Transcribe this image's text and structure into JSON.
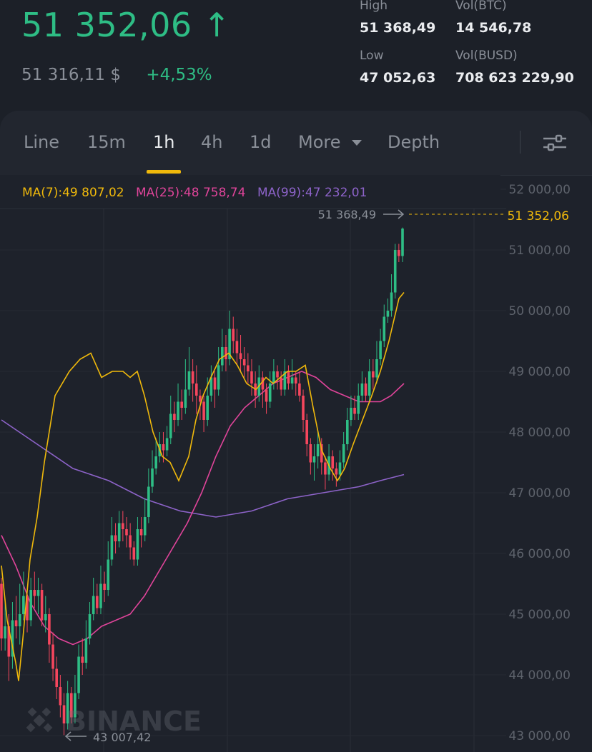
{
  "header": {
    "last_price": "51 352,06",
    "price_arrow": "↑",
    "usd_price": "51 316,11 $",
    "change": "+4,53%",
    "high_label": "High",
    "high_value": "51 368,49",
    "low_label": "Low",
    "low_value": "47 052,63",
    "vol_base_label": "Vol(BTC)",
    "vol_base_value": "14 546,78",
    "vol_quote_label": "Vol(BUSD)",
    "vol_quote_value": "708 623 229,90"
  },
  "tabs": {
    "line": "Line",
    "m15": "15m",
    "h1": "1h",
    "h4": "4h",
    "d1": "1d",
    "more": "More",
    "depth": "Depth",
    "active": "1h",
    "settings_icon": "sliders-icon"
  },
  "legend": {
    "ma7": "MA(7):49 807,02",
    "ma25": "MA(25):48 758,74",
    "ma99": "MA(99):47 232,01"
  },
  "colors": {
    "up": "#2ebd85",
    "down": "#f6465d",
    "ma7": "#f0b90b",
    "ma25": "#e0449a",
    "ma99": "#8d63c9",
    "accent": "#f0b90b"
  },
  "chart": {
    "y_ticks": [
      "52 000,00",
      "51 000,00",
      "50 000,00",
      "49 000,00",
      "48 000,00",
      "47 000,00",
      "46 000,00",
      "45 000,00",
      "44 000,00",
      "43 000,00"
    ],
    "y_tick_values": [
      52000,
      51000,
      50000,
      49000,
      48000,
      47000,
      46000,
      45000,
      44000,
      43000
    ],
    "high_marker": "51 368,49",
    "low_marker": "43 007,42",
    "current_price_label": "51 352,06",
    "watermark": "BINANCE"
  },
  "chart_data": {
    "type": "candlestick",
    "ylim": [
      43000,
      52000
    ],
    "high": 51368.49,
    "low": 43007.42,
    "last": 51352.06,
    "candles": [
      [
        45500,
        44600,
        45600,
        44400
      ],
      [
        44600,
        44800,
        45200,
        44400
      ],
      [
        44800,
        44300,
        45000,
        43900
      ],
      [
        44300,
        44900,
        45200,
        44100
      ],
      [
        44900,
        44800,
        45300,
        44600
      ],
      [
        44800,
        45000,
        45500,
        44500
      ],
      [
        45000,
        45300,
        45700,
        44900
      ],
      [
        45300,
        44900,
        45400,
        44700
      ],
      [
        44900,
        45400,
        45600,
        44800
      ],
      [
        45400,
        45300,
        45700,
        45100
      ],
      [
        45300,
        45400,
        45600,
        45000
      ],
      [
        45400,
        44900,
        45500,
        44800
      ],
      [
        44900,
        45000,
        45300,
        44700
      ],
      [
        45000,
        44500,
        45100,
        44200
      ],
      [
        44500,
        44100,
        44700,
        43900
      ],
      [
        44100,
        43800,
        44300,
        43600
      ],
      [
        43800,
        43500,
        44000,
        43300
      ],
      [
        43500,
        43200,
        43700,
        43007.42
      ],
      [
        43200,
        43700,
        43900,
        43100
      ],
      [
        43700,
        43300,
        43800,
        43200
      ],
      [
        43300,
        43700,
        44000,
        43200
      ],
      [
        43700,
        44300,
        44500,
        43600
      ],
      [
        44300,
        44200,
        44600,
        44000
      ],
      [
        44200,
        44600,
        44900,
        44100
      ],
      [
        44600,
        45000,
        45200,
        44500
      ],
      [
        45000,
        45300,
        45600,
        44900
      ],
      [
        45300,
        45100,
        45500,
        45000
      ],
      [
        45100,
        45500,
        45800,
        45000
      ],
      [
        45500,
        45400,
        45700,
        45200
      ],
      [
        45400,
        45900,
        46200,
        45300
      ],
      [
        45900,
        46300,
        46600,
        45800
      ],
      [
        46300,
        46200,
        46500,
        46000
      ],
      [
        46200,
        46500,
        46700,
        46100
      ],
      [
        46500,
        46400,
        46700,
        46200
      ],
      [
        46400,
        46300,
        46600,
        46100
      ],
      [
        46300,
        46100,
        46500,
        45900
      ],
      [
        46100,
        45900,
        46200,
        45800
      ],
      [
        45900,
        46400,
        46600,
        45800
      ],
      [
        46400,
        46300,
        46600,
        46100
      ],
      [
        46300,
        46600,
        46900,
        46200
      ],
      [
        46600,
        47100,
        47400,
        46500
      ],
      [
        47100,
        47400,
        47700,
        47000
      ],
      [
        47400,
        47600,
        47900,
        47300
      ],
      [
        47600,
        47800,
        48000,
        47500
      ],
      [
        47800,
        47700,
        48000,
        47500
      ],
      [
        47700,
        47900,
        48100,
        47600
      ],
      [
        47900,
        48300,
        48600,
        47800
      ],
      [
        48300,
        48200,
        48500,
        48000
      ],
      [
        48200,
        48500,
        48800,
        48100
      ],
      [
        48500,
        48400,
        48700,
        48200
      ],
      [
        48400,
        48700,
        49200,
        48300
      ],
      [
        48700,
        49000,
        49400,
        48600
      ],
      [
        49000,
        48800,
        49200,
        48500
      ],
      [
        48800,
        48600,
        49100,
        48300
      ],
      [
        48600,
        48500,
        48700,
        48200
      ],
      [
        48500,
        48200,
        48600,
        48000
      ],
      [
        48200,
        48600,
        48900,
        48100
      ],
      [
        48600,
        48900,
        49100,
        48500
      ],
      [
        48900,
        48700,
        49000,
        48400
      ],
      [
        48700,
        49100,
        49400,
        48600
      ],
      [
        49100,
        49400,
        49700,
        49000
      ],
      [
        49400,
        49200,
        49600,
        49000
      ],
      [
        49200,
        49700,
        50000,
        49100
      ],
      [
        49700,
        49500,
        49900,
        49300
      ],
      [
        49500,
        49300,
        49700,
        49100
      ],
      [
        49300,
        49200,
        49600,
        49000
      ],
      [
        49200,
        49100,
        49400,
        48900
      ],
      [
        49100,
        49000,
        49300,
        48800
      ],
      [
        49000,
        48800,
        49200,
        48600
      ],
      [
        48800,
        48600,
        49000,
        48400
      ],
      [
        48600,
        48900,
        49100,
        48500
      ],
      [
        48900,
        48700,
        49000,
        48400
      ],
      [
        48700,
        48500,
        48800,
        48300
      ],
      [
        48500,
        48800,
        49000,
        48400
      ],
      [
        48800,
        49000,
        49200,
        48700
      ],
      [
        49000,
        48900,
        49100,
        48700
      ],
      [
        48900,
        48700,
        49000,
        48600
      ],
      [
        48700,
        49000,
        49200,
        48600
      ],
      [
        49000,
        48800,
        49100,
        48700
      ],
      [
        48800,
        48900,
        49200,
        48700
      ],
      [
        48900,
        48800,
        49000,
        48600
      ],
      [
        48800,
        48600,
        49000,
        48500
      ],
      [
        48600,
        48200,
        48700,
        48000
      ],
      [
        48200,
        47800,
        48300,
        47600
      ],
      [
        47800,
        47500,
        47900,
        47300
      ],
      [
        47500,
        47600,
        47800,
        47200
      ],
      [
        47600,
        47800,
        48000,
        47400
      ],
      [
        47800,
        47500,
        47900,
        47300
      ],
      [
        47500,
        47300,
        47600,
        47052.63
      ],
      [
        47300,
        47600,
        47800,
        47200
      ],
      [
        47600,
        47400,
        47700,
        47200
      ],
      [
        47400,
        47300,
        47500,
        47100
      ],
      [
        47300,
        47500,
        47700,
        47200
      ],
      [
        47500,
        47800,
        48000,
        47400
      ],
      [
        47800,
        48200,
        48400,
        47700
      ],
      [
        48200,
        48400,
        48600,
        48100
      ],
      [
        48400,
        48300,
        48600,
        48200
      ],
      [
        48300,
        48600,
        48800,
        48200
      ],
      [
        48600,
        48800,
        49000,
        48500
      ],
      [
        48800,
        48600,
        48900,
        48500
      ],
      [
        48600,
        49000,
        49200,
        48500
      ],
      [
        49000,
        48900,
        49200,
        48700
      ],
      [
        48900,
        49200,
        49500,
        48800
      ],
      [
        49200,
        49500,
        49700,
        49100
      ],
      [
        49500,
        49900,
        50100,
        49400
      ],
      [
        49900,
        50000,
        50200,
        49800
      ],
      [
        50000,
        50300,
        50600,
        49900
      ],
      [
        50300,
        51000,
        51100,
        50200
      ],
      [
        51000,
        50900,
        51100,
        50800
      ],
      [
        50900,
        51352.06,
        51368.49,
        50800
      ]
    ],
    "ma7": [
      [
        0,
        45800
      ],
      [
        8,
        44900
      ],
      [
        20,
        44200
      ],
      [
        24,
        43900
      ],
      [
        30,
        44600
      ],
      [
        40,
        45900
      ],
      [
        50,
        46600
      ],
      [
        60,
        47500
      ],
      [
        75,
        48600
      ],
      [
        95,
        49000
      ],
      [
        110,
        49200
      ],
      [
        125,
        49300
      ],
      [
        140,
        48900
      ],
      [
        155,
        49000
      ],
      [
        170,
        49000
      ],
      [
        180,
        48900
      ],
      [
        190,
        49000
      ],
      [
        200,
        48600
      ],
      [
        212,
        48000
      ],
      [
        225,
        47600
      ],
      [
        236,
        47500
      ],
      [
        248,
        47200
      ],
      [
        262,
        47600
      ],
      [
        272,
        48200
      ],
      [
        282,
        48600
      ],
      [
        293,
        48900
      ],
      [
        305,
        49200
      ],
      [
        318,
        49300
      ],
      [
        330,
        49100
      ],
      [
        343,
        48800
      ],
      [
        356,
        48700
      ],
      [
        370,
        48900
      ],
      [
        380,
        48800
      ],
      [
        390,
        48900
      ],
      [
        400,
        49000
      ],
      [
        412,
        49000
      ],
      [
        425,
        49100
      ],
      [
        436,
        48400
      ],
      [
        448,
        47700
      ],
      [
        460,
        47400
      ],
      [
        470,
        47200
      ],
      [
        480,
        47400
      ],
      [
        492,
        47800
      ],
      [
        505,
        48200
      ],
      [
        518,
        48600
      ],
      [
        530,
        49000
      ],
      [
        542,
        49500
      ],
      [
        556,
        50200
      ],
      [
        563,
        50300
      ]
    ],
    "ma25": [
      [
        0,
        46300
      ],
      [
        20,
        45800
      ],
      [
        40,
        45200
      ],
      [
        60,
        44800
      ],
      [
        80,
        44600
      ],
      [
        100,
        44500
      ],
      [
        120,
        44600
      ],
      [
        140,
        44800
      ],
      [
        160,
        44900
      ],
      [
        180,
        45000
      ],
      [
        200,
        45300
      ],
      [
        220,
        45700
      ],
      [
        240,
        46100
      ],
      [
        260,
        46500
      ],
      [
        280,
        47000
      ],
      [
        300,
        47600
      ],
      [
        320,
        48100
      ],
      [
        340,
        48400
      ],
      [
        360,
        48600
      ],
      [
        380,
        48800
      ],
      [
        400,
        48900
      ],
      [
        420,
        49000
      ],
      [
        440,
        48900
      ],
      [
        460,
        48700
      ],
      [
        480,
        48600
      ],
      [
        500,
        48500
      ],
      [
        515,
        48500
      ],
      [
        530,
        48500
      ],
      [
        545,
        48600
      ],
      [
        563,
        48800
      ]
    ],
    "ma99": [
      [
        0,
        48200
      ],
      [
        50,
        47800
      ],
      [
        100,
        47400
      ],
      [
        150,
        47200
      ],
      [
        200,
        46900
      ],
      [
        250,
        46700
      ],
      [
        300,
        46600
      ],
      [
        350,
        46700
      ],
      [
        400,
        46900
      ],
      [
        450,
        47000
      ],
      [
        500,
        47100
      ],
      [
        530,
        47200
      ],
      [
        563,
        47300
      ]
    ]
  }
}
